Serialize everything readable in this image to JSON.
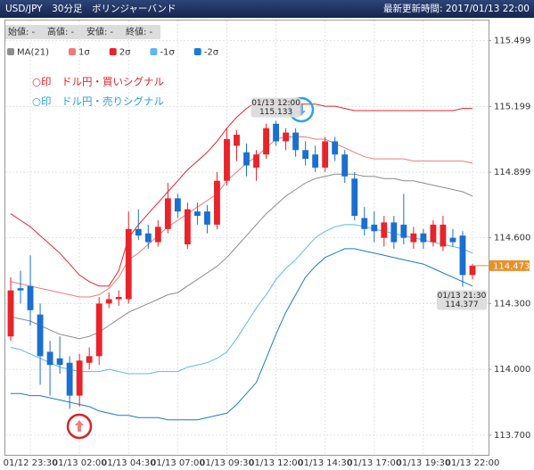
{
  "chart_data": {
    "type": "candlestick",
    "title": "USD/JPY　30分足　ボリンジャーバンド",
    "updated": "最新更新時間: 2017/01/13 22:00",
    "ohlc_labels": [
      "始値: -",
      "高値: -",
      "安値: -",
      "終値: -"
    ],
    "signals": [
      {
        "text": "○印　ドル円・買いシグナル",
        "color": "#e8232a"
      },
      {
        "text": "○印　ドル円・売りシグナル",
        "color": "#2a9ee0"
      }
    ],
    "categories": [
      null,
      null,
      "01/12 23:30",
      null,
      null,
      null,
      null,
      "01/13 02:00",
      null,
      null,
      null,
      null,
      "01/13 04:30",
      null,
      null,
      null,
      null,
      "01/13 07:00",
      null,
      null,
      null,
      null,
      "01/13 09:30",
      null,
      null,
      null,
      null,
      "01/13 12:00",
      null,
      null,
      null,
      null,
      "01/13 14:30",
      null,
      null,
      null,
      null,
      "01/13 17:00",
      null,
      null,
      null,
      null,
      "01/13 19:30",
      null,
      null,
      null,
      null,
      "01/13 22:00"
    ],
    "candles": {
      "up_color": "#e8232a",
      "down_color": "#1a6fd1",
      "open": [
        114.15,
        114.37,
        114.38,
        114.25,
        114.08,
        114.05,
        114.03,
        113.88,
        114.03,
        114.06,
        114.3,
        114.32,
        114.32,
        114.64,
        114.62,
        114.58,
        114.64,
        114.78,
        114.57,
        114.72,
        114.72,
        114.66,
        114.86,
        115.02,
        114.99,
        114.92,
        114.98,
        115.12,
        115.04,
        115.08,
        115.0,
        114.98,
        114.92,
        115.04,
        114.98,
        114.87,
        114.69,
        114.66,
        114.6,
        114.67,
        114.66,
        114.58,
        114.62,
        114.58,
        114.56,
        114.6,
        114.61,
        114.43
      ],
      "high": [
        114.42,
        114.45,
        114.52,
        114.3,
        114.13,
        114.15,
        114.06,
        114.07,
        114.1,
        114.33,
        114.35,
        114.36,
        114.72,
        114.73,
        114.66,
        114.68,
        114.85,
        114.8,
        114.76,
        114.76,
        114.75,
        114.9,
        115.1,
        115.09,
        115.03,
        115.0,
        115.12,
        115.133,
        115.1,
        115.1,
        115.04,
        115.02,
        115.06,
        115.06,
        115.0,
        114.9,
        114.74,
        114.72,
        114.7,
        114.7,
        114.8,
        114.65,
        114.64,
        114.68,
        114.7,
        114.64,
        114.63,
        114.48
      ],
      "low": [
        114.13,
        114.3,
        114.2,
        113.93,
        113.88,
        113.98,
        113.82,
        113.83,
        114.0,
        114.02,
        114.28,
        114.29,
        114.3,
        114.59,
        114.55,
        114.56,
        114.62,
        114.69,
        114.55,
        114.66,
        114.62,
        114.64,
        114.84,
        114.95,
        114.88,
        114.86,
        114.96,
        115.02,
        115.0,
        114.97,
        114.93,
        114.9,
        114.9,
        114.95,
        114.85,
        114.68,
        114.61,
        114.58,
        114.56,
        114.55,
        114.57,
        114.55,
        114.55,
        114.56,
        114.54,
        114.56,
        114.377,
        114.41
      ],
      "close": [
        114.36,
        114.36,
        114.27,
        114.06,
        114.02,
        114.02,
        113.88,
        114.04,
        114.06,
        114.3,
        114.32,
        114.33,
        114.64,
        114.61,
        114.58,
        114.65,
        114.78,
        114.72,
        114.73,
        114.7,
        114.66,
        114.86,
        115.05,
        115.07,
        114.93,
        114.98,
        115.1,
        115.04,
        115.08,
        115.0,
        114.96,
        114.92,
        115.04,
        114.98,
        114.88,
        114.7,
        114.64,
        114.63,
        114.67,
        114.58,
        114.6,
        114.62,
        114.58,
        114.66,
        114.66,
        114.58,
        114.43,
        114.473
      ]
    },
    "series": [
      {
        "name": "MA(21)",
        "color": "#8c8c8c",
        "values": [
          114.24,
          114.23,
          114.22,
          114.2,
          114.18,
          114.16,
          114.15,
          114.14,
          114.15,
          114.17,
          114.2,
          114.23,
          114.26,
          114.28,
          114.3,
          114.32,
          114.34,
          114.35,
          114.38,
          114.41,
          114.44,
          114.47,
          114.51,
          114.56,
          114.61,
          114.66,
          114.71,
          114.75,
          114.79,
          114.82,
          114.85,
          114.87,
          114.88,
          114.89,
          114.89,
          114.89,
          114.88,
          114.88,
          114.87,
          114.87,
          114.86,
          114.86,
          114.85,
          114.84,
          114.83,
          114.82,
          114.81,
          114.79
        ]
      },
      {
        "name": "1σ",
        "color": "#f07a7a",
        "values": [
          114.4,
          114.39,
          114.38,
          114.37,
          114.36,
          114.35,
          114.34,
          114.33,
          114.33,
          114.34,
          114.37,
          114.42,
          114.5,
          114.53,
          114.57,
          114.61,
          114.65,
          114.68,
          114.71,
          114.74,
          114.77,
          114.8,
          114.86,
          114.9,
          114.94,
          114.97,
          115.01,
          115.05,
          115.06,
          115.06,
          115.06,
          115.05,
          115.05,
          115.03,
          115.01,
          114.99,
          114.97,
          114.96,
          114.96,
          114.96,
          114.96,
          114.95,
          114.95,
          114.95,
          114.95,
          114.95,
          114.95,
          114.94
        ]
      },
      {
        "name": "2σ",
        "color": "#e8232a",
        "values": [
          114.71,
          114.68,
          114.65,
          114.61,
          114.57,
          114.53,
          114.48,
          114.43,
          114.4,
          114.38,
          114.38,
          114.45,
          114.6,
          114.66,
          114.71,
          114.76,
          114.81,
          114.86,
          114.91,
          114.95,
          114.99,
          115.04,
          115.1,
          115.15,
          115.19,
          115.22,
          115.22,
          115.22,
          115.22,
          115.21,
          115.21,
          115.21,
          115.2,
          115.2,
          115.19,
          115.18,
          115.18,
          115.18,
          115.18,
          115.18,
          115.18,
          115.18,
          115.18,
          115.18,
          115.18,
          115.18,
          115.19,
          115.19
        ]
      },
      {
        "name": "-1σ",
        "color": "#5bb8f0",
        "values": [
          114.1,
          114.09,
          114.07,
          114.05,
          114.03,
          114.01,
          114.0,
          113.99,
          113.99,
          113.99,
          114.0,
          113.99,
          113.98,
          113.98,
          113.98,
          113.99,
          113.99,
          113.99,
          114.01,
          114.02,
          114.03,
          114.05,
          114.08,
          114.14,
          114.21,
          114.28,
          114.34,
          114.41,
          114.46,
          114.5,
          114.55,
          114.6,
          114.63,
          114.65,
          114.66,
          114.66,
          114.65,
          114.64,
          114.63,
          114.62,
          114.61,
          114.6,
          114.59,
          114.58,
          114.57,
          114.56,
          114.55,
          114.53
        ]
      },
      {
        "name": "-2σ",
        "color": "#1a7ad4",
        "values": [
          113.89,
          113.89,
          113.88,
          113.88,
          113.87,
          113.86,
          113.85,
          113.84,
          113.83,
          113.81,
          113.8,
          113.79,
          113.79,
          113.78,
          113.78,
          113.78,
          113.77,
          113.77,
          113.77,
          113.77,
          113.78,
          113.79,
          113.8,
          113.84,
          113.89,
          113.94,
          114.05,
          114.16,
          114.26,
          114.34,
          114.42,
          114.47,
          114.51,
          114.53,
          114.55,
          114.55,
          114.54,
          114.53,
          114.52,
          114.51,
          114.5,
          114.49,
          114.48,
          114.46,
          114.44,
          114.42,
          114.4,
          114.38
        ]
      }
    ],
    "peak_label": {
      "time": "01/13 12:00",
      "value": 115.133
    },
    "low_label": {
      "time": "01/13 21:30",
      "value": 114.377
    },
    "current_price": 114.473,
    "current_color": "#e8902a",
    "ylim": [
      113.61,
      115.53
    ],
    "yticks": [
      115.499,
      115.199,
      114.899,
      {
        "value": 114.6,
        "label": "114.600"
      },
      {
        "value": 114.3,
        "label": "114.300"
      },
      {
        "value": 114,
        "label": "114.000"
      },
      {
        "value": 113.7,
        "label": "113.700"
      }
    ],
    "grid": true
  }
}
